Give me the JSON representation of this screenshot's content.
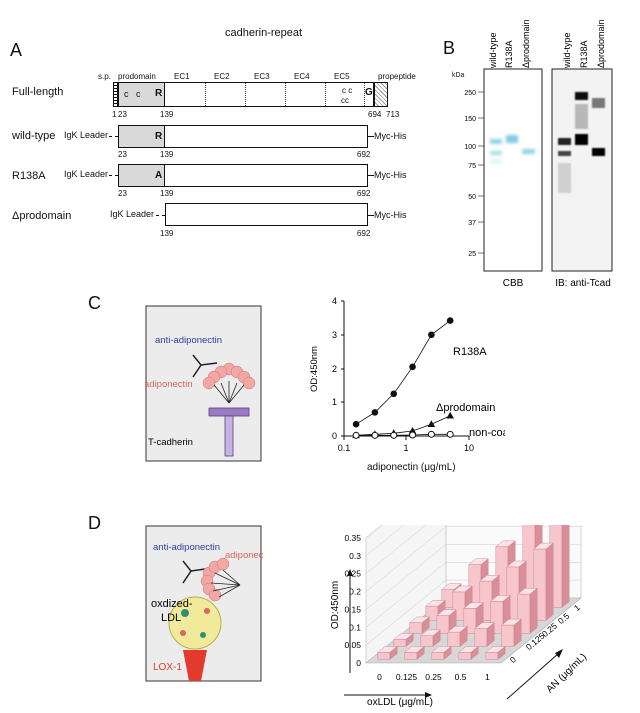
{
  "panels": {
    "A": "A",
    "B": "B",
    "C": "C",
    "D": "D"
  },
  "panelA": {
    "header": "cadherin-repeat",
    "domains": {
      "sp": "s.p.",
      "prodomain": "prodomain",
      "ec1": "EC1",
      "ec2": "EC2",
      "ec3": "EC3",
      "ec4": "EC4",
      "ec5": "EC5",
      "propeptide": "propeptide"
    },
    "rows": [
      {
        "name": "Full-length"
      },
      {
        "name": "wild-type",
        "leader": "IgK Leader",
        "tag": "Myc-His",
        "residue": "R"
      },
      {
        "name": "R138A",
        "leader": "IgK Leader",
        "tag": "Myc-His",
        "residue": "A"
      },
      {
        "name": "Δprodomain",
        "leader": "IgK Leader",
        "tag": "Myc-His"
      }
    ],
    "full_marks": {
      "c1": "c",
      "c2": "c",
      "R": "R",
      "ec5_c": "c c",
      "ec5_cc": "cc",
      "G": "G"
    },
    "nums": {
      "n1": "1",
      "n23": "23",
      "n139": "139",
      "n694": "694",
      "n713": "713",
      "n692": "692"
    }
  },
  "panelB": {
    "kda": "kDa",
    "lanes": [
      "wild-type",
      "R138A",
      "Δprodomain"
    ],
    "markers": [
      "250",
      "150",
      "100",
      "75",
      "50",
      "37",
      "25"
    ],
    "label_left": "CBB",
    "label_right": "IB: anti-Tcad"
  },
  "panelC": {
    "schematic": {
      "antibody": "anti-adiponectin",
      "adiponectin": "adiponectin",
      "receptor": "T-cadherin"
    },
    "chart_data": {
      "type": "scatter",
      "xlabel": "adiponectin (μg/mL)",
      "ylabel": "OD:450nm",
      "xscale": "log",
      "xlim": [
        0.1,
        10
      ],
      "ylim": [
        0,
        4
      ],
      "xticks": [
        "0.1",
        "1",
        "10"
      ],
      "yticks": [
        "0",
        "1",
        "2",
        "3",
        "4"
      ],
      "x": [
        0.156,
        0.3125,
        0.625,
        1.25,
        2.5,
        5
      ],
      "series": [
        {
          "name": "R138A",
          "marker": "filled-circle",
          "values": [
            0.35,
            0.7,
            1.25,
            2.05,
            3.0,
            3.42
          ]
        },
        {
          "name": "Δprodomain",
          "marker": "filled-triangle",
          "values": [
            0.02,
            0.05,
            0.08,
            0.15,
            0.35,
            0.6
          ]
        },
        {
          "name": "non-coat",
          "marker": "open-circle",
          "values": [
            0.02,
            0.02,
            0.02,
            0.03,
            0.05,
            0.05
          ]
        }
      ],
      "annotations": [
        "R138A",
        "Δprodomain",
        "non-coat"
      ]
    }
  },
  "panelD": {
    "schematic": {
      "antibody": "anti-adiponectin",
      "adiponectin": "adiponectin",
      "ldl_line1": "oxdized-",
      "ldl_line2": "LDL",
      "receptor": "LOX-1"
    },
    "chart_data": {
      "type": "bar3d",
      "zlabel": "OD:450nm",
      "xlabel": "oxLDL (μg/mL)",
      "ylabel": "AN (μg/mL)",
      "zlim": [
        0,
        0.35
      ],
      "zticks": [
        "0",
        "0.05",
        "0.1",
        "0.15",
        "0.2",
        "0.25",
        "0.3",
        "0.35"
      ],
      "x_categories": [
        "0",
        "0.125",
        "0.25",
        "0.5",
        "1"
      ],
      "y_categories": [
        "0",
        "0.125",
        "0.25",
        "0.5",
        "1"
      ],
      "values": [
        [
          0.02,
          0.02,
          0.02,
          0.02,
          0.02
        ],
        [
          0.02,
          0.03,
          0.04,
          0.05,
          0.06
        ],
        [
          0.03,
          0.05,
          0.07,
          0.09,
          0.11
        ],
        [
          0.04,
          0.08,
          0.11,
          0.15,
          0.2
        ],
        [
          0.05,
          0.12,
          0.17,
          0.24,
          0.33
        ]
      ]
    }
  },
  "colors": {
    "bar_front": "#f7c6cd",
    "bar_side": "#d98f9a",
    "bar_top": "#fbe3e7",
    "cbb_blue": "#7fcbe0"
  }
}
